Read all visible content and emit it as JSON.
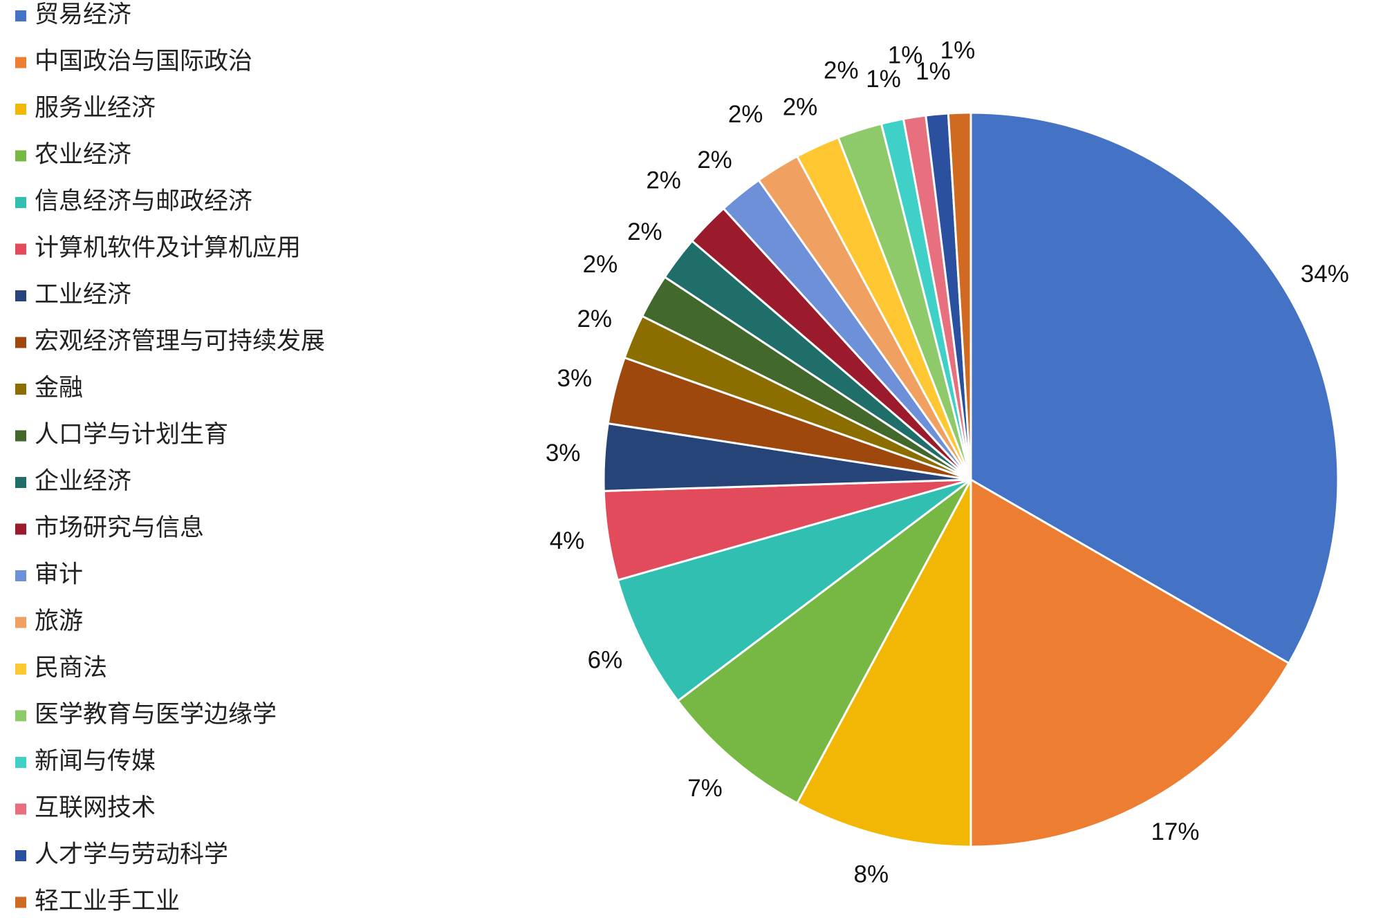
{
  "chart_data": {
    "type": "pie",
    "categories": [
      "贸易经济",
      "中国政治与国际政治",
      "服务业经济",
      "农业经济",
      "信息经济与邮政经济",
      "计算机软件及计算机应用",
      "工业经济",
      "宏观经济管理与可持续发展",
      "金融",
      "人口学与计划生育",
      "企业经济",
      "市场研究与信息",
      "审计",
      "旅游",
      "民商法",
      "医学教育与医学边缘学",
      "新闻与传媒",
      "互联网技术",
      "人才学与劳动科学",
      "轻工业手工业"
    ],
    "values": [
      34,
      17,
      8,
      7,
      6,
      4,
      3,
      3,
      2,
      2,
      2,
      2,
      2,
      2,
      2,
      2,
      1,
      1,
      1,
      1
    ],
    "value_labels": [
      "34%",
      "17%",
      "8%",
      "7%",
      "6%",
      "4%",
      "3%",
      "3%",
      "2%",
      "2%",
      "2%",
      "2%",
      "2%",
      "2%",
      "2%",
      "2%",
      "1%",
      "1%",
      "1%",
      "1%"
    ],
    "colors": [
      "#4472c4",
      "#ed7d31",
      "#f2b705",
      "#76b843",
      "#30bfb1",
      "#e24b5b",
      "#264478",
      "#9e480e",
      "#8c6d00",
      "#43682b",
      "#1f6e69",
      "#9b1b2c",
      "#6d90d8",
      "#f0a060",
      "#ffc832",
      "#8fca6a",
      "#3fd0c8",
      "#e8707e",
      "#2c50a0",
      "#d06a20"
    ],
    "legend": "left"
  }
}
